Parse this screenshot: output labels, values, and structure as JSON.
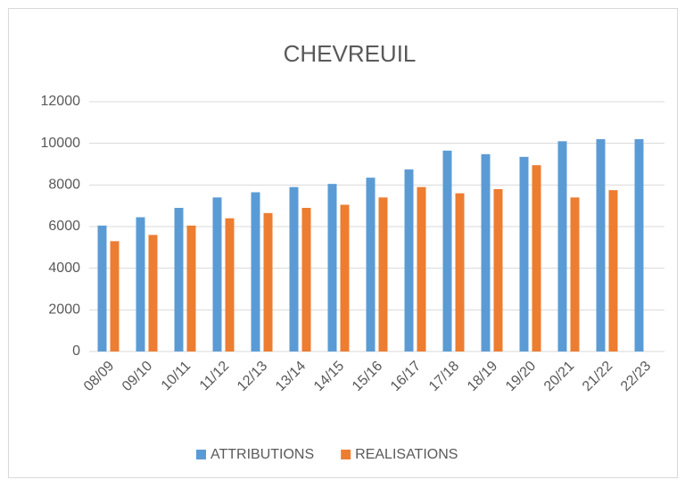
{
  "chart_data": {
    "type": "bar",
    "title": "CHEVREUIL",
    "categories": [
      "08/09",
      "09/10",
      "10/11",
      "11/12",
      "12/13",
      "13/14",
      "14/15",
      "15/16",
      "16/17",
      "17/18",
      "18/19",
      "19/20",
      "20/21",
      "21/22",
      "22/23"
    ],
    "series": [
      {
        "name": "ATTRIBUTIONS",
        "color": "#5b9bd5",
        "values": [
          6050,
          6450,
          6900,
          7400,
          7650,
          7900,
          8050,
          8350,
          8750,
          9650,
          9480,
          9350,
          10100,
          10200,
          10200
        ]
      },
      {
        "name": "REALISATIONS",
        "color": "#ed7d31",
        "values": [
          5300,
          5600,
          6050,
          6400,
          6650,
          6900,
          7050,
          7400,
          7900,
          7600,
          7800,
          8950,
          7400,
          7750,
          null
        ]
      }
    ],
    "ylim": [
      0,
      12000
    ],
    "yticks": [
      0,
      2000,
      4000,
      6000,
      8000,
      10000,
      12000
    ],
    "grid": true,
    "legend": "bottom"
  }
}
